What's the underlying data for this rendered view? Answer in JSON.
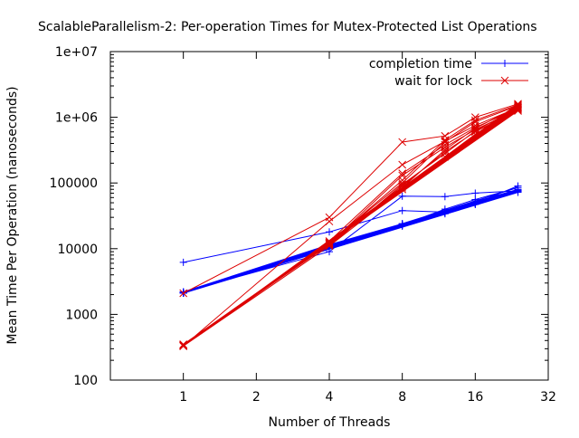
{
  "chart_data": {
    "type": "line",
    "title": "ScalableParallelism-2: Per-operation Times for Mutex-Protected List Operations",
    "xlabel": "Number of Threads",
    "ylabel": "Mean Time Per Operation (nanoseconds)",
    "xscale": "log2",
    "yscale": "log10",
    "xlim": [
      0.5,
      32
    ],
    "ylim": [
      100,
      10000000
    ],
    "xticks": [
      {
        "value": 1,
        "label": "1"
      },
      {
        "value": 2,
        "label": "2"
      },
      {
        "value": 4,
        "label": "4"
      },
      {
        "value": 8,
        "label": "8"
      },
      {
        "value": 16,
        "label": "16"
      },
      {
        "value": 32,
        "label": "32"
      }
    ],
    "yticks": [
      {
        "value": 100,
        "label": "100"
      },
      {
        "value": 1000,
        "label": "1000"
      },
      {
        "value": 10000,
        "label": "10000"
      },
      {
        "value": 100000,
        "label": "100000"
      },
      {
        "value": 1000000,
        "label": "1e+06"
      },
      {
        "value": 10000000,
        "label": "1e+07"
      }
    ],
    "grid": false,
    "legend_position": "top-right",
    "series": [
      {
        "name": "completion time",
        "color": "#0000ff",
        "marker": "plus",
        "x": [
          1,
          4,
          8,
          12,
          16,
          24,
          1,
          4,
          8,
          12,
          16,
          24,
          1,
          4,
          8,
          12,
          16,
          24,
          1,
          4,
          8,
          12,
          16,
          24,
          1,
          4,
          8,
          12,
          16,
          24,
          1,
          4,
          8,
          12,
          16,
          24,
          1,
          4,
          8,
          12,
          16,
          24,
          1,
          4,
          8,
          12,
          16,
          24,
          1,
          4,
          8,
          12,
          16,
          24,
          1,
          4,
          8,
          12,
          16,
          24
        ],
        "y": [
          6200,
          18000,
          38000,
          36000,
          50000,
          75000,
          2200,
          9000,
          63000,
          62000,
          70000,
          76000,
          2100,
          11000,
          22000,
          35000,
          47000,
          72000,
          2100,
          10500,
          23000,
          34000,
          48000,
          74000,
          2150,
          11000,
          23500,
          35500,
          49000,
          77000,
          2200,
          11500,
          24000,
          36000,
          50000,
          78000,
          2100,
          10800,
          22500,
          35000,
          48500,
          75000,
          2150,
          11200,
          24000,
          37000,
          52000,
          80000,
          2100,
          10900,
          23000,
          40000,
          56000,
          85000,
          2200,
          11000,
          23500,
          36000,
          49000,
          90000
        ]
      },
      {
        "name": "wait for lock",
        "color": "#dd0000",
        "marker": "cross",
        "x": [
          1,
          4,
          8,
          12,
          16,
          24,
          1,
          4,
          8,
          12,
          16,
          24,
          1,
          4,
          8,
          12,
          16,
          24,
          1,
          4,
          8,
          12,
          16,
          24,
          1,
          4,
          8,
          12,
          16,
          24,
          1,
          4,
          8,
          12,
          16,
          24,
          1,
          4,
          8,
          12,
          16,
          24,
          1,
          4,
          8,
          12,
          16,
          24,
          1,
          4,
          8,
          12,
          16,
          24,
          1,
          4,
          8,
          12,
          16,
          24
        ],
        "y": [
          2100,
          30000,
          420000,
          520000,
          1000000,
          1600000,
          330,
          26000,
          190000,
          430000,
          750000,
          1400000,
          340,
          13000,
          140000,
          380000,
          700000,
          1350000,
          330,
          12000,
          130000,
          350000,
          650000,
          1300000,
          350,
          11500,
          90000,
          300000,
          600000,
          1300000,
          330,
          11000,
          80000,
          250000,
          550000,
          1250000,
          345,
          12500,
          100000,
          420000,
          850000,
          1500000,
          335,
          11800,
          85000,
          320000,
          680000,
          1450000,
          340,
          12200,
          110000,
          450000,
          900000,
          1550000,
          330,
          11000,
          95000,
          280000,
          620000,
          1400000
        ]
      }
    ]
  }
}
